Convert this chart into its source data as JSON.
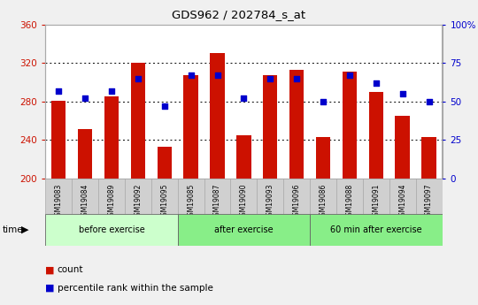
{
  "title": "GDS962 / 202784_s_at",
  "categories": [
    "GSM19083",
    "GSM19084",
    "GSM19089",
    "GSM19092",
    "GSM19095",
    "GSM19085",
    "GSM19087",
    "GSM19090",
    "GSM19093",
    "GSM19096",
    "GSM19086",
    "GSM19088",
    "GSM19091",
    "GSM19094",
    "GSM19097"
  ],
  "counts": [
    281,
    251,
    285,
    320,
    233,
    307,
    330,
    245,
    307,
    313,
    243,
    311,
    290,
    265,
    243
  ],
  "percentiles": [
    57,
    52,
    57,
    65,
    47,
    67,
    67,
    52,
    65,
    65,
    50,
    67,
    62,
    55,
    50
  ],
  "groups": [
    {
      "label": "before exercise",
      "start": 0,
      "end": 5,
      "color": "#ccffcc"
    },
    {
      "label": "after exercise",
      "start": 5,
      "end": 10,
      "color": "#88ee88"
    },
    {
      "label": "60 min after exercise",
      "start": 10,
      "end": 15,
      "color": "#88ee88"
    }
  ],
  "ylim_left": [
    200,
    360
  ],
  "ylim_right": [
    0,
    100
  ],
  "yticks_left": [
    200,
    240,
    280,
    320,
    360
  ],
  "yticks_right": [
    0,
    25,
    50,
    75,
    100
  ],
  "bar_color": "#cc1100",
  "dot_color": "#0000cc",
  "grid_color": "#000000",
  "axis_color_left": "#cc1100",
  "axis_color_right": "#0000cc",
  "plot_bg": "#ffffff",
  "fig_bg": "#f0f0f0",
  "label_bg": "#d0d0d0",
  "legend_items": [
    "count",
    "percentile rank within the sample"
  ]
}
